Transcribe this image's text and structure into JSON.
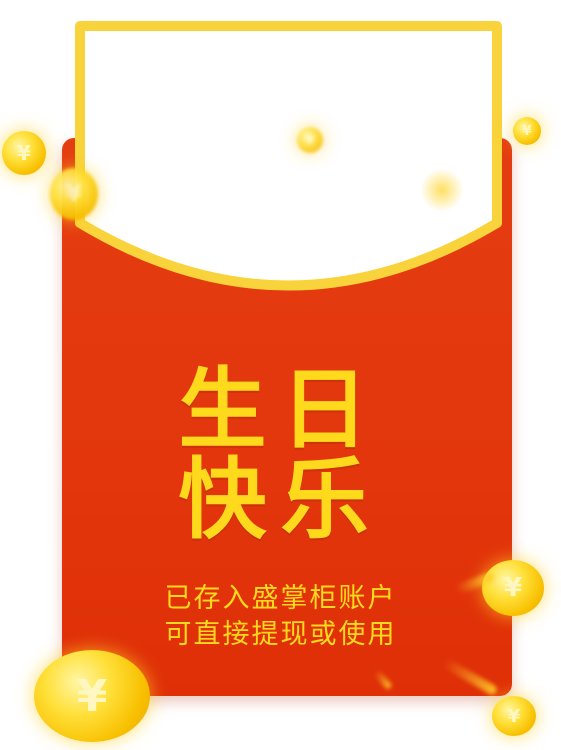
{
  "greeting": {
    "line1": "生日",
    "line2": "快乐"
  },
  "message": {
    "line1": "已存入盛掌柜账户",
    "line2": "可直接提现或使用"
  },
  "coin_symbol": "¥",
  "colors": {
    "envelope": "#e3360c",
    "gold": "#ffd91c",
    "card_border": "#f9d33b"
  },
  "icons": {
    "coin": "yuan-coin-icon"
  }
}
